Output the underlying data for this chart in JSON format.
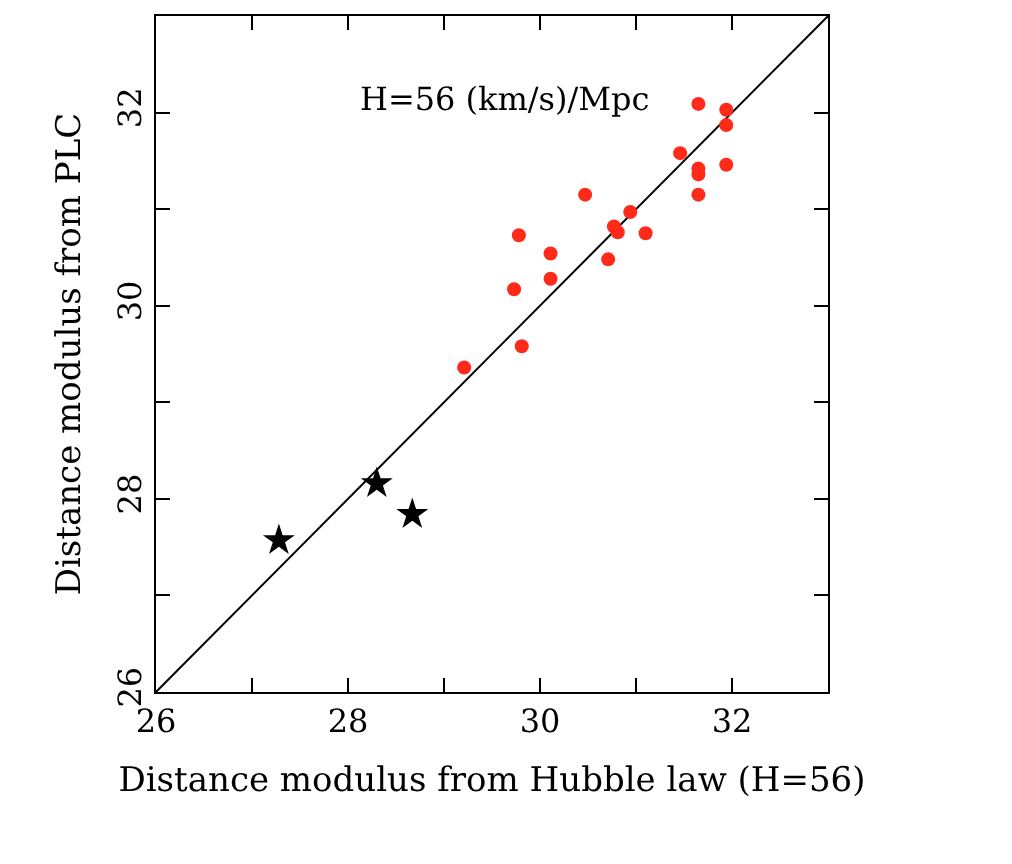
{
  "chart_data": {
    "type": "scatter",
    "xlabel": "Distance modulus from Hubble law (H=56)",
    "ylabel": "Distance modulus from PLC",
    "annotations": [
      "H=56 (km/s)/Mpc"
    ],
    "xlim": [
      26,
      33
    ],
    "ylim": [
      26,
      33
    ],
    "xticks": [
      26,
      {
        "value": 27,
        "label": null
      },
      28,
      {
        "value": 29,
        "label": null
      },
      30,
      {
        "value": 31,
        "label": null
      },
      32
    ],
    "yticks": [
      26,
      {
        "value": 27,
        "label": null
      },
      28,
      {
        "value": 29,
        "label": null
      },
      30,
      {
        "value": 31,
        "label": null
      },
      32
    ],
    "grid": false,
    "series": [
      {
        "type": "line",
        "color": "#000000",
        "marker": "none",
        "line_style": "solid",
        "x": [
          26,
          33
        ],
        "values": [
          26,
          33
        ]
      },
      {
        "type": "scatter",
        "color": "#ff2a1a",
        "marker": "circle",
        "x": [
          29.21,
          29.81,
          29.73,
          29.78,
          30.11,
          30.11,
          30.47,
          30.71,
          30.77,
          30.81,
          30.94,
          31.1,
          31.46,
          31.65,
          31.65,
          31.65,
          31.65,
          31.94,
          31.94,
          31.94
        ],
        "values": [
          29.36,
          29.58,
          30.17,
          30.73,
          30.54,
          30.28,
          31.15,
          30.48,
          30.82,
          30.76,
          30.97,
          30.75,
          31.58,
          32.09,
          31.42,
          31.36,
          31.15,
          32.03,
          31.87,
          31.46
        ]
      },
      {
        "type": "scatter",
        "color": "#000000",
        "marker": "star",
        "x": [
          27.28,
          28.3,
          28.67
        ],
        "values": [
          27.57,
          28.16,
          27.84
        ]
      }
    ]
  }
}
